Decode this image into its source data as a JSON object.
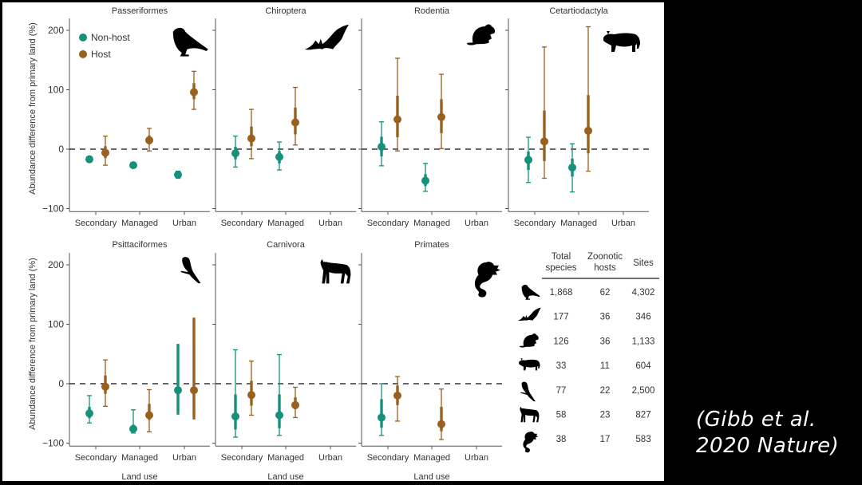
{
  "colors": {
    "non_host": "#17907a",
    "host": "#99601e",
    "axis": "#555555",
    "text": "#333333"
  },
  "citation": {
    "line1": "(Gibb  et al.",
    "line2": "2020 Nature)"
  },
  "chart_data": {
    "type": "dot-errorbar",
    "ylabel": "Abundance difference from primary land (%)",
    "xlabel": "Land use",
    "categories": [
      "Secondary",
      "Managed",
      "Urban"
    ],
    "ylim": [
      -105,
      220
    ],
    "yticks": [
      -100,
      0,
      100,
      200
    ],
    "ytick_labels": [
      "−100",
      "0",
      "100",
      "200"
    ],
    "reference_line": 0,
    "legend": {
      "placement": "top-left",
      "entries": [
        {
          "key": "non_host",
          "label": "Non-host"
        },
        {
          "key": "host",
          "label": "Host"
        }
      ]
    },
    "panels": [
      {
        "title": "Passeriformes",
        "icon": "bird-icon",
        "non_host": [
          {
            "cat": "Secondary",
            "value": -17
          },
          {
            "cat": "Managed",
            "value": -27
          },
          {
            "cat": "Urban",
            "value": -43,
            "ci": [
              -49,
              -37
            ],
            "ci_inner": [
              -46,
              -40
            ]
          }
        ],
        "host": [
          {
            "cat": "Secondary",
            "value": -6,
            "ci": [
              -27,
              22
            ],
            "ci_inner": [
              -15,
              5
            ]
          },
          {
            "cat": "Managed",
            "value": 15,
            "ci": [
              -3,
              35
            ],
            "ci_inner": [
              8,
              23
            ]
          },
          {
            "cat": "Urban",
            "value": 96,
            "ci": [
              67,
              131
            ],
            "ci_inner": [
              84,
              111
            ]
          }
        ]
      },
      {
        "title": "Chiroptera",
        "icon": "bat-icon",
        "non_host": [
          {
            "cat": "Secondary",
            "value": -7,
            "ci": [
              -30,
              22
            ],
            "ci_inner": [
              -17,
              4
            ]
          },
          {
            "cat": "Managed",
            "value": -13,
            "ci": [
              -35,
              12
            ],
            "ci_inner": [
              -24,
              -3
            ]
          }
        ],
        "host": [
          {
            "cat": "Secondary",
            "value": 18,
            "ci": [
              -16,
              67
            ],
            "ci_inner": [
              5,
              38
            ]
          },
          {
            "cat": "Managed",
            "value": 45,
            "ci": [
              7,
              104
            ],
            "ci_inner": [
              25,
              70
            ]
          }
        ]
      },
      {
        "title": "Rodentia",
        "icon": "rodent-icon",
        "non_host": [
          {
            "cat": "Secondary",
            "value": 4,
            "ci": [
              -28,
              46
            ],
            "ci_inner": [
              -12,
              21
            ]
          },
          {
            "cat": "Managed",
            "value": -53,
            "ci": [
              -71,
              -24
            ],
            "ci_inner": [
              -62,
              -42
            ]
          }
        ],
        "host": [
          {
            "cat": "Secondary",
            "value": 50,
            "ci": [
              -3,
              153
            ],
            "ci_inner": [
              20,
              90
            ]
          },
          {
            "cat": "Managed",
            "value": 54,
            "ci": [
              1,
              126
            ],
            "ci_inner": [
              27,
              84
            ]
          }
        ]
      },
      {
        "title": "Cetartiodactyla",
        "icon": "bovid-icon",
        "non_host": [
          {
            "cat": "Secondary",
            "value": -18,
            "ci": [
              -56,
              20
            ],
            "ci_inner": [
              -35,
              -4
            ]
          },
          {
            "cat": "Managed",
            "value": -31,
            "ci": [
              -72,
              9
            ],
            "ci_inner": [
              -46,
              -16
            ]
          }
        ],
        "host": [
          {
            "cat": "Secondary",
            "value": 13,
            "ci": [
              -49,
              172
            ],
            "ci_inner": [
              -20,
              65
            ]
          },
          {
            "cat": "Managed",
            "value": 31,
            "ci": [
              -37,
              206
            ],
            "ci_inner": [
              -7,
              91
            ]
          }
        ]
      },
      {
        "title": "Psittaciformes",
        "icon": "parrot-icon",
        "non_host": [
          {
            "cat": "Secondary",
            "value": -50,
            "ci": [
              -66,
              -20
            ],
            "ci_inner": [
              -58,
              -39
            ]
          },
          {
            "cat": "Managed",
            "value": -76,
            "ci": [
              -83,
              -44
            ],
            "ci_inner": [
              -80,
              -69
            ]
          },
          {
            "cat": "Urban",
            "value": -11,
            "ci": [
              -52,
              67
            ],
            "ci_inner": [
              -52,
              67
            ]
          }
        ],
        "host": [
          {
            "cat": "Secondary",
            "value": -5,
            "ci": [
              -38,
              40
            ],
            "ci_inner": [
              -17,
              14
            ]
          },
          {
            "cat": "Managed",
            "value": -53,
            "ci": [
              -81,
              -10
            ],
            "ci_inner": [
              -61,
              -34
            ]
          },
          {
            "cat": "Urban",
            "value": -11,
            "ci": [
              -60,
              111
            ],
            "ci_inner": [
              -60,
              111
            ]
          }
        ]
      },
      {
        "title": "Carnivora",
        "icon": "canid-icon",
        "non_host": [
          {
            "cat": "Secondary",
            "value": -55,
            "ci": [
              -90,
              57
            ],
            "ci_inner": [
              -77,
              -18
            ]
          },
          {
            "cat": "Managed",
            "value": -53,
            "ci": [
              -87,
              49
            ],
            "ci_inner": [
              -75,
              -18
            ]
          }
        ],
        "host": [
          {
            "cat": "Secondary",
            "value": -19,
            "ci": [
              -53,
              38
            ],
            "ci_inner": [
              -37,
              5
            ]
          },
          {
            "cat": "Managed",
            "value": -36,
            "ci": [
              -57,
              -6
            ],
            "ci_inner": [
              -43,
              -23
            ]
          }
        ]
      },
      {
        "title": "Primates",
        "icon": "primate-icon",
        "non_host": [
          {
            "cat": "Secondary",
            "value": -57,
            "ci": [
              -87,
              0
            ],
            "ci_inner": [
              -74,
              -26
            ]
          }
        ],
        "host": [
          {
            "cat": "Secondary",
            "value": -20,
            "ci": [
              -63,
              12
            ],
            "ci_inner": [
              -36,
              -3
            ]
          },
          {
            "cat": "Managed",
            "value": -68,
            "ci": [
              -94,
              -9
            ],
            "ci_inner": [
              -80,
              -39
            ]
          }
        ]
      }
    ],
    "table": {
      "headers": [
        [
          "Total",
          "species"
        ],
        [
          "Zoonotic",
          "hosts"
        ],
        [
          "Sites"
        ]
      ],
      "rows": [
        {
          "icon": "bird-icon",
          "cells": [
            "1,868",
            "62",
            "4,302"
          ]
        },
        {
          "icon": "bat-icon",
          "cells": [
            "177",
            "36",
            "346"
          ]
        },
        {
          "icon": "rodent-icon",
          "cells": [
            "126",
            "36",
            "1,133"
          ]
        },
        {
          "icon": "bovid-icon",
          "cells": [
            "33",
            "11",
            "604"
          ]
        },
        {
          "icon": "parrot-icon",
          "cells": [
            "77",
            "22",
            "2,500"
          ]
        },
        {
          "icon": "canid-icon",
          "cells": [
            "58",
            "23",
            "827"
          ]
        },
        {
          "icon": "primate-icon",
          "cells": [
            "38",
            "17",
            "583"
          ]
        }
      ]
    }
  }
}
